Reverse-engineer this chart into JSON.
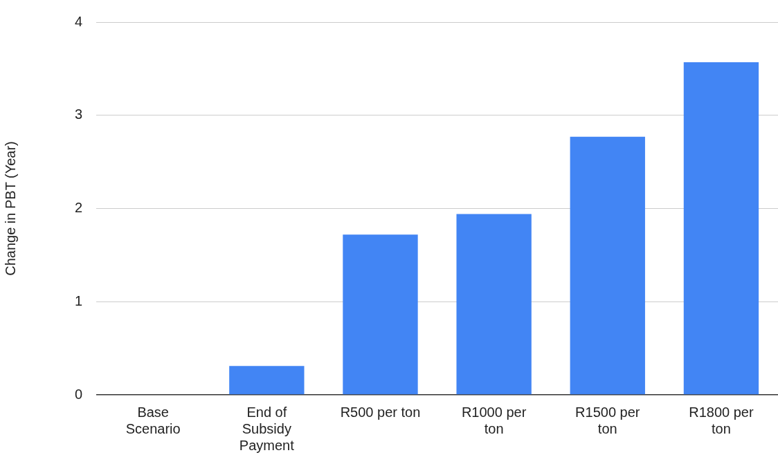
{
  "chart_data": {
    "type": "bar",
    "ylabel": "Change in PBT (Year)",
    "categories": [
      "Base Scenario",
      "End of Subsidy Payment",
      "R500 per ton",
      "R1000 per ton",
      "R1500 per ton",
      "R1800 per ton"
    ],
    "values": [
      0,
      0.31,
      1.72,
      1.94,
      2.77,
      3.57
    ],
    "color": "#4285f4",
    "ylim": [
      0,
      4
    ],
    "yticks": [
      0,
      1,
      2,
      3,
      4
    ],
    "grid": "y",
    "legend": false
  }
}
